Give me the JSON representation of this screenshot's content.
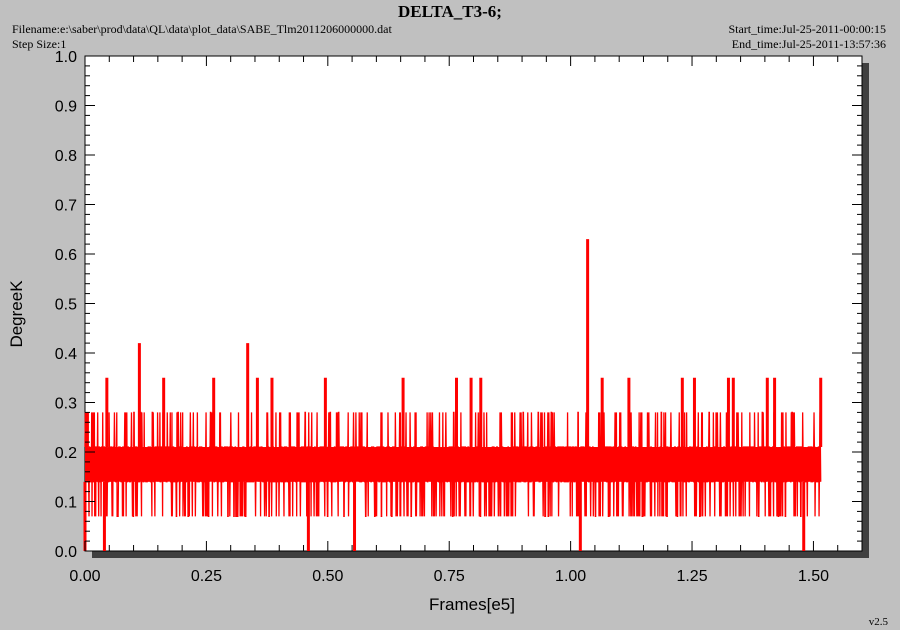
{
  "header": {
    "title": "DELTA_T3-6;",
    "filename": "Filename:e:\\saber\\prod\\data\\QL\\data\\plot_data\\SABE_Tlm2011206000000.dat",
    "step_size": "Step Size:1",
    "start_time": "Start_time:Jul-25-2011-00:00:15",
    "end_time": "End_time:Jul-25-2011-13:57:36",
    "version": "v2.5"
  },
  "colors": {
    "background": "#c0c0c0",
    "plot_area": "#ffffff",
    "series": "#ff0000",
    "shadow": "#404040"
  },
  "chart_data": {
    "type": "line",
    "title": "DELTA_T3-6;",
    "xlabel": "Frames[e5]",
    "ylabel": "DegreeK",
    "xlim": [
      0.0,
      1.6
    ],
    "ylim": [
      0.0,
      1.0
    ],
    "xticks": [
      "0.00",
      "0.25",
      "0.50",
      "0.75",
      "1.00",
      "1.25",
      "1.50"
    ],
    "yticks": [
      "0.0",
      "0.1",
      "0.2",
      "0.3",
      "0.4",
      "0.5",
      "0.6",
      "0.7",
      "0.8",
      "0.9",
      "1.0"
    ],
    "grid": false,
    "series": [
      {
        "color": "#ff0000",
        "x_range": [
          0.0,
          1.515
        ],
        "levels": [
          0.07,
          0.14,
          0.21,
          0.28
        ],
        "spikes": [
          {
            "x": 0.005,
            "y": 0.28
          },
          {
            "x": 0.045,
            "y": 0.35
          },
          {
            "x": 0.112,
            "y": 0.42
          },
          {
            "x": 0.162,
            "y": 0.35
          },
          {
            "x": 0.265,
            "y": 0.35
          },
          {
            "x": 0.335,
            "y": 0.42
          },
          {
            "x": 0.355,
            "y": 0.35
          },
          {
            "x": 0.385,
            "y": 0.35
          },
          {
            "x": 0.495,
            "y": 0.35
          },
          {
            "x": 0.655,
            "y": 0.35
          },
          {
            "x": 0.765,
            "y": 0.35
          },
          {
            "x": 0.795,
            "y": 0.35
          },
          {
            "x": 0.815,
            "y": 0.35
          },
          {
            "x": 1.035,
            "y": 0.63
          },
          {
            "x": 1.065,
            "y": 0.35
          },
          {
            "x": 1.12,
            "y": 0.35
          },
          {
            "x": 1.23,
            "y": 0.35
          },
          {
            "x": 1.255,
            "y": 0.35
          },
          {
            "x": 1.325,
            "y": 0.35
          },
          {
            "x": 1.335,
            "y": 0.35
          },
          {
            "x": 1.405,
            "y": 0.35
          },
          {
            "x": 1.42,
            "y": 0.35
          },
          {
            "x": 1.515,
            "y": 0.35
          }
        ],
        "dips": [
          {
            "x": 0.0,
            "y": 0.0
          },
          {
            "x": 0.04,
            "y": 0.0
          },
          {
            "x": 0.46,
            "y": 0.0
          },
          {
            "x": 0.555,
            "y": 0.0
          },
          {
            "x": 1.02,
            "y": 0.0
          },
          {
            "x": 1.48,
            "y": 0.0
          }
        ]
      }
    ]
  }
}
